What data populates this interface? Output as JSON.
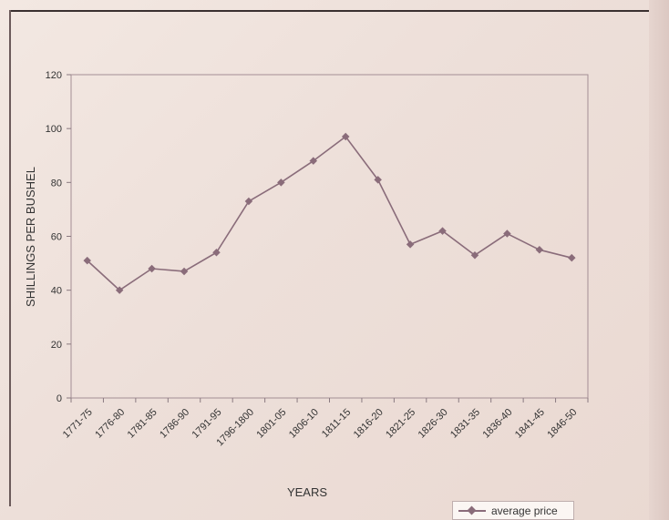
{
  "chart_data": {
    "type": "line",
    "title": "",
    "xlabel": "YEARS",
    "ylabel": "SHILLINGS PER BUSHEL",
    "ylim": [
      0,
      120
    ],
    "yticks": [
      0,
      20,
      40,
      60,
      80,
      100,
      120
    ],
    "grid": false,
    "legend_position": "bottom-right",
    "categories": [
      "1771-75",
      "1776-80",
      "1781-85",
      "1786-90",
      "1791-95",
      "1796-1800",
      "1801-05",
      "1806-10",
      "1811-15",
      "1816-20",
      "1821-25",
      "1826-30",
      "1831-35",
      "1836-40",
      "1841-45",
      "1846-50"
    ],
    "series": [
      {
        "name": "average price",
        "color": "#8a6c7a",
        "values": [
          51,
          40,
          48,
          47,
          54,
          73,
          80,
          88,
          97,
          81,
          57,
          62,
          53,
          61,
          55,
          52
        ]
      }
    ]
  }
}
